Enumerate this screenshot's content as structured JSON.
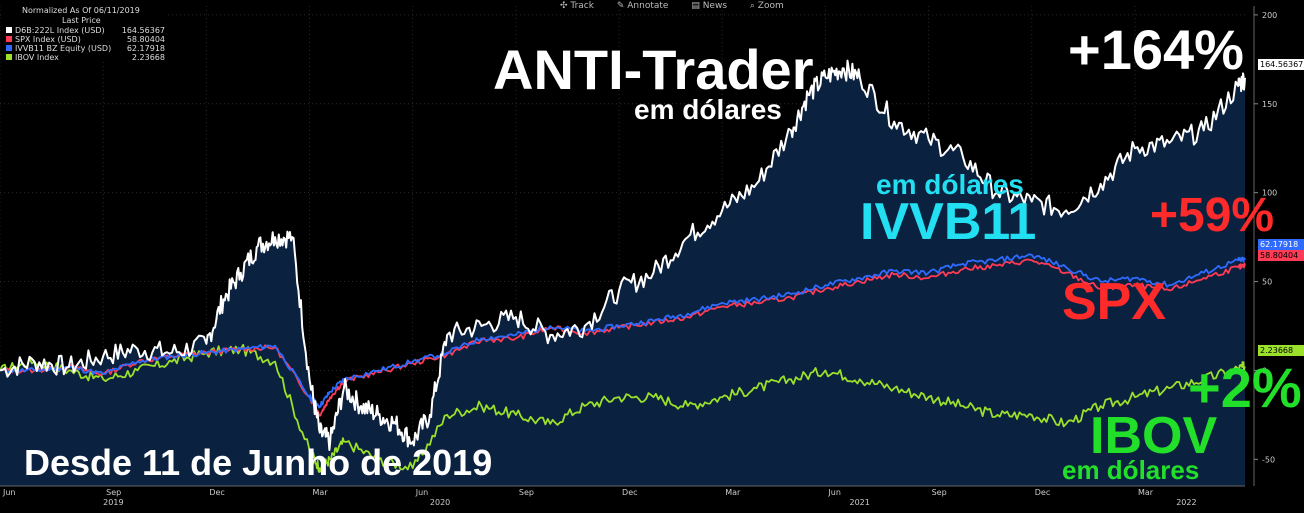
{
  "legend": {
    "header1": "Normalized As Of 06/11/2019",
    "header2": "Last Price",
    "items": [
      {
        "name": "D6B:222L Index (USD)",
        "value": "164.56367",
        "color": "#ffffff"
      },
      {
        "name": "SPX Index (USD)",
        "value": "58.80404",
        "color": "#ff3b55"
      },
      {
        "name": "IVVB11 BZ Equity (USD)",
        "value": "62.17918",
        "color": "#2f6bff"
      },
      {
        "name": "IBOV Index",
        "value": "2.23668",
        "color": "#9be02a"
      }
    ]
  },
  "toolbar": {
    "track": "Track",
    "annotate": "Annotate",
    "news": "News",
    "zoom": "Zoom"
  },
  "annotations": {
    "anti_title": "ANTI-Trader",
    "anti_sub": "em dólares",
    "anti_pct": "+164%",
    "ivvb_sub": "em dólares",
    "ivvb": "IVVB11",
    "spx_pct": "+59%",
    "spx": "SPX",
    "ibov_pct": "+2%",
    "ibov": "IBOV",
    "ibov_sub": "em dólares",
    "since": "Desde 11 de Junho de 2019"
  },
  "right_labels": {
    "anti": "164.56367",
    "ivvb": "62.17918",
    "spx": "58.80404",
    "ibov": "2.23668"
  },
  "colors": {
    "anti": "#ffffff",
    "spx": "#ff3b55",
    "ivvb": "#2f6bff",
    "ibov": "#9be02a",
    "area": "#0b2140",
    "anno_ivvb": "#22e0f2",
    "anno_red": "#ff2a2a",
    "anno_green": "#22e02a"
  },
  "chart_data": {
    "type": "area",
    "ylim": [
      -65,
      205
    ],
    "yticks": [
      -50,
      0,
      50,
      100,
      150,
      200
    ],
    "xlim": [
      0,
      36.2
    ],
    "x_month_labels": [
      {
        "x": 0,
        "label": "Jun"
      },
      {
        "x": 3,
        "label": "Sep"
      },
      {
        "x": 6,
        "label": "Dec"
      },
      {
        "x": 9,
        "label": "Mar"
      },
      {
        "x": 12,
        "label": "Jun"
      },
      {
        "x": 15,
        "label": "Sep"
      },
      {
        "x": 18,
        "label": "Dec"
      },
      {
        "x": 21,
        "label": "Mar"
      },
      {
        "x": 24,
        "label": "Jun"
      },
      {
        "x": 27,
        "label": "Sep"
      },
      {
        "x": 30,
        "label": "Dec"
      },
      {
        "x": 33,
        "label": "Mar"
      }
    ],
    "x_year_labels": [
      {
        "x": 3,
        "label": "2019"
      },
      {
        "x": 12.5,
        "label": "2020"
      },
      {
        "x": 24.7,
        "label": "2021"
      },
      {
        "x": 34.2,
        "label": "2022"
      }
    ],
    "x_unit": "months since 11 Jun 2019",
    "series": [
      {
        "name": "D6B:222L Index (USD)",
        "key": "anti",
        "x": [
          0,
          1,
          2,
          3,
          4,
          5,
          6,
          6.5,
          7,
          7.5,
          8,
          8.5,
          9,
          9.3,
          9.6,
          10,
          10.5,
          11,
          11.5,
          12,
          12.5,
          13,
          14,
          15,
          16,
          17,
          18,
          19,
          20,
          21,
          22,
          23,
          23.5,
          24,
          24.5,
          25,
          26,
          27,
          28,
          29,
          30,
          31,
          32,
          33,
          34,
          35,
          36,
          36.2
        ],
        "y": [
          0,
          5,
          2,
          8,
          12,
          10,
          15,
          40,
          55,
          70,
          75,
          75,
          -5,
          -35,
          -40,
          -10,
          -20,
          -25,
          -30,
          -40,
          -25,
          20,
          25,
          30,
          20,
          25,
          45,
          55,
          75,
          90,
          105,
          135,
          155,
          165,
          170,
          165,
          140,
          130,
          120,
          100,
          95,
          90,
          105,
          125,
          128,
          135,
          160,
          164.6
        ]
      },
      {
        "name": "IVVB11 BZ Equity (USD)",
        "key": "ivvb",
        "x": [
          0,
          1,
          2,
          3,
          4,
          5,
          6,
          7,
          8,
          9,
          9.3,
          9.6,
          10,
          11,
          12,
          13,
          14,
          15,
          16,
          17,
          18,
          19,
          20,
          21,
          22,
          23,
          24,
          25,
          26,
          27,
          28,
          29,
          30,
          31,
          32,
          33,
          34,
          35,
          36,
          36.2
        ],
        "y": [
          0,
          0,
          2,
          -2,
          5,
          8,
          10,
          12,
          14,
          -15,
          -20,
          -12,
          -5,
          0,
          5,
          10,
          18,
          20,
          25,
          22,
          25,
          28,
          32,
          38,
          40,
          43,
          48,
          52,
          56,
          55,
          60,
          62,
          65,
          58,
          50,
          52,
          48,
          55,
          62,
          62.2
        ]
      },
      {
        "name": "SPX Index (USD)",
        "key": "spx",
        "x": [
          0,
          1,
          2,
          3,
          4,
          5,
          6,
          7,
          8,
          9,
          9.3,
          9.6,
          10,
          11,
          12,
          13,
          14,
          15,
          16,
          17,
          18,
          19,
          20,
          21,
          22,
          23,
          24,
          25,
          26,
          27,
          28,
          29,
          30,
          31,
          32,
          33,
          34,
          35,
          36,
          36.2
        ],
        "y": [
          0,
          0,
          2,
          -2,
          5,
          8,
          10,
          12,
          13,
          -15,
          -25,
          -15,
          -6,
          -1,
          4,
          9,
          17,
          18,
          24,
          21,
          24,
          27,
          30,
          36,
          38,
          41,
          46,
          50,
          54,
          52,
          57,
          59,
          62,
          55,
          46,
          48,
          45,
          52,
          58,
          58.8
        ]
      },
      {
        "name": "IBOV Index",
        "key": "ibov",
        "x": [
          0,
          1,
          2,
          3,
          4,
          5,
          6,
          7,
          8,
          9,
          9.3,
          9.6,
          10,
          11,
          12,
          13,
          14,
          15,
          16,
          17,
          18,
          19,
          20,
          21,
          22,
          23,
          24,
          25,
          26,
          27,
          28,
          29,
          30,
          31,
          32,
          33,
          34,
          35,
          36,
          36.2
        ],
        "y": [
          0,
          5,
          0,
          -5,
          0,
          5,
          10,
          12,
          5,
          -45,
          -55,
          -50,
          -40,
          -50,
          -55,
          -25,
          -20,
          -25,
          -30,
          -20,
          -15,
          -15,
          -20,
          -15,
          -10,
          -5,
          0,
          -5,
          -10,
          -15,
          -20,
          -25,
          -25,
          -30,
          -20,
          -15,
          -10,
          -5,
          1,
          2.2
        ]
      }
    ]
  }
}
